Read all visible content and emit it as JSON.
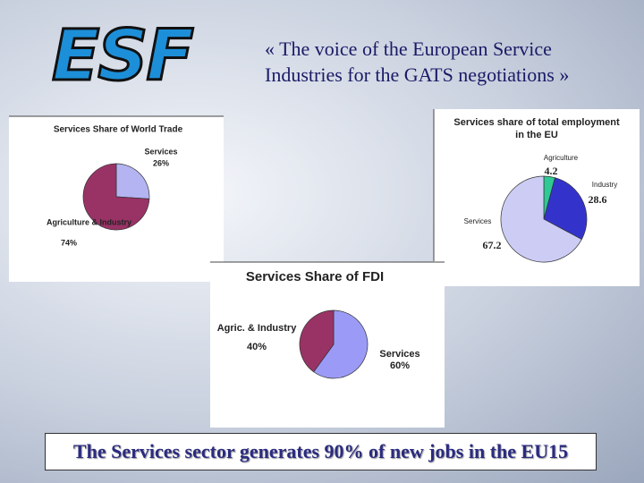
{
  "logo": "ESF",
  "header": "« The voice of the European Service Industries for the GATS negotiations »",
  "footer": "The Services sector generates 90% of new jobs in the EU15",
  "chart_data": [
    {
      "type": "pie",
      "title": "Services Share of World Trade",
      "categories": [
        "Services",
        "Agriculture & Industry"
      ],
      "values": [
        26,
        74
      ],
      "value_labels": [
        "26%",
        "74%"
      ],
      "colors": [
        "#b4b4f2",
        "#993366"
      ]
    },
    {
      "type": "pie",
      "title": "Services share of total employment in the EU",
      "categories": [
        "Agriculture",
        "Industry",
        "Services"
      ],
      "values": [
        4.2,
        28.6,
        67.2
      ],
      "colors": [
        "#2fc994",
        "#3333cc",
        "#ccccf5"
      ]
    },
    {
      "type": "pie",
      "title": "Services Share of FDI",
      "categories": [
        "Services",
        "Agric. & Industry"
      ],
      "values": [
        60,
        40
      ],
      "value_labels": [
        "60%",
        "40%"
      ],
      "colors": [
        "#9b9bf7",
        "#993366"
      ]
    }
  ]
}
